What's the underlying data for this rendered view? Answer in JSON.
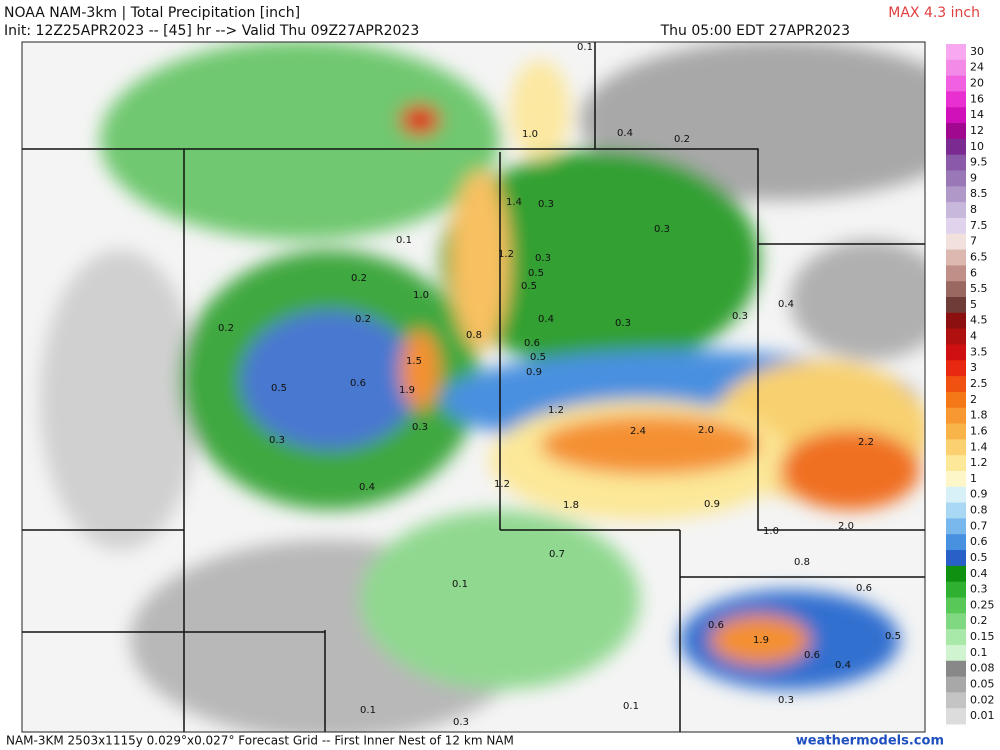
{
  "header": {
    "title": "NOAA NAM-3km | Total Precipitation [inch]",
    "max": "MAX 4.3 inch",
    "init": "Init: 12Z25APR2023 -- [45] hr --> Valid Thu 09Z27APR2023",
    "valid": "Thu 05:00 EDT 27APR2023"
  },
  "colorbar": [
    {
      "label": "30",
      "color": "#f7a8f0"
    },
    {
      "label": "24",
      "color": "#f48ae8"
    },
    {
      "label": "20",
      "color": "#f060e0"
    },
    {
      "label": "16",
      "color": "#e830d0"
    },
    {
      "label": "14",
      "color": "#d010b8"
    },
    {
      "label": "12",
      "color": "#a00890"
    },
    {
      "label": "10",
      "color": "#7a2a90"
    },
    {
      "label": "9.5",
      "color": "#8a5aa8"
    },
    {
      "label": "9",
      "color": "#9a78b8"
    },
    {
      "label": "8.5",
      "color": "#b098c8"
    },
    {
      "label": "8",
      "color": "#c8b8dc"
    },
    {
      "label": "7.5",
      "color": "#e0d4ec"
    },
    {
      "label": "7",
      "color": "#f2e0dc"
    },
    {
      "label": "6.5",
      "color": "#dcb8b0"
    },
    {
      "label": "6",
      "color": "#c09088"
    },
    {
      "label": "5.5",
      "color": "#9a6860"
    },
    {
      "label": "5",
      "color": "#703c38"
    },
    {
      "label": "4.5",
      "color": "#8c1010"
    },
    {
      "label": "4",
      "color": "#b01010"
    },
    {
      "label": "3.5",
      "color": "#d01010"
    },
    {
      "label": "3",
      "color": "#e82810"
    },
    {
      "label": "2.5",
      "color": "#f05010"
    },
    {
      "label": "2",
      "color": "#f47818"
    },
    {
      "label": "1.8",
      "color": "#f89830"
    },
    {
      "label": "1.6",
      "color": "#f8b448"
    },
    {
      "label": "1.4",
      "color": "#fad070"
    },
    {
      "label": "1.2",
      "color": "#fce898"
    },
    {
      "label": "1",
      "color": "#fcf6c8"
    },
    {
      "label": "0.9",
      "color": "#d8f0f8"
    },
    {
      "label": "0.8",
      "color": "#a8d8f4"
    },
    {
      "label": "0.7",
      "color": "#78b8ec"
    },
    {
      "label": "0.6",
      "color": "#4890e0"
    },
    {
      "label": "0.5",
      "color": "#2860c8"
    },
    {
      "label": "0.4",
      "color": "#109010"
    },
    {
      "label": "0.3",
      "color": "#30b030"
    },
    {
      "label": "0.25",
      "color": "#58c858"
    },
    {
      "label": "0.2",
      "color": "#80d880"
    },
    {
      "label": "0.15",
      "color": "#a8e8a8"
    },
    {
      "label": "0.1",
      "color": "#d0f4d0"
    },
    {
      "label": "0.08",
      "color": "#888888"
    },
    {
      "label": "0.05",
      "color": "#a8a8a8"
    },
    {
      "label": "0.02",
      "color": "#c4c4c4"
    },
    {
      "label": "0.01",
      "color": "#dcdcdc"
    }
  ],
  "map_labels": [
    "0.1",
    "0.4",
    "0.2",
    "1.0",
    "1.4",
    "0.3",
    "0.3",
    "0.1",
    "1.2",
    "0.3",
    "0.5",
    "0.2",
    "0.5",
    "1.0",
    "0.4",
    "0.2",
    "0.4",
    "0.3",
    "0.3",
    "0.2",
    "0.8",
    "0.6",
    "0.5",
    "1.5",
    "0.9",
    "0.6",
    "0.5",
    "1.9",
    "1.2",
    "0.3",
    "2.4",
    "2.0",
    "2.2",
    "0.3",
    "1.2",
    "0.4",
    "1.8",
    "0.9",
    "2.0",
    "1.0",
    "0.7",
    "0.8",
    "0.1",
    "0.6",
    "0.6",
    "1.9",
    "0.5",
    "0.6",
    "0.4",
    "0.3",
    "0.1",
    "0.1",
    "0.3"
  ],
  "footer": {
    "grid": "NAM-3KM 2503x1115y 0.029°x0.027° Forecast Grid -- First Inner Nest of 12 km NAM",
    "site": "weathermodels.com"
  }
}
